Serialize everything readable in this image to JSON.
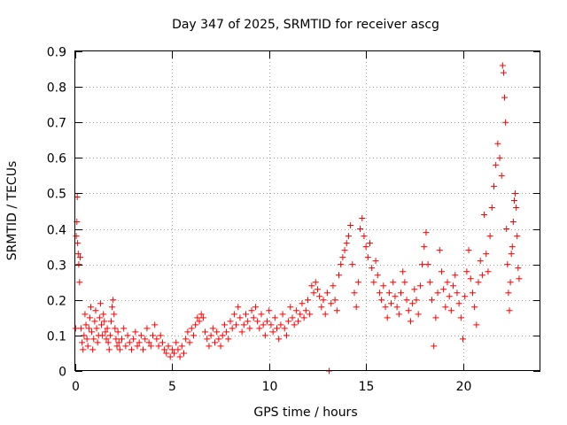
{
  "chart_data": {
    "type": "scatter",
    "title": "Day 347 of 2025, SRMTID for receiver ascg",
    "xlabel": "GPS time / hours",
    "ylabel": "SRMTID / TECUs",
    "xlim": [
      0,
      24
    ],
    "ylim": [
      0,
      0.9
    ],
    "x_ticks": [
      0,
      5,
      10,
      15,
      20
    ],
    "x_tick_labels": [
      "0",
      "5",
      "10",
      "15",
      "20"
    ],
    "y_ticks": [
      0,
      0.1,
      0.2,
      0.3,
      0.4,
      0.5,
      0.6,
      0.7,
      0.8,
      0.9
    ],
    "y_tick_labels": [
      "0",
      "0.1",
      "0.2",
      "0.3",
      "0.4",
      "0.5",
      "0.6",
      "0.7",
      "0.8",
      "0.9"
    ],
    "grid": true,
    "marker": "plus",
    "color": "#ff0000",
    "series": [
      {
        "name": "SRMTID",
        "points": [
          [
            0.02,
            0.12
          ],
          [
            0.05,
            0.38
          ],
          [
            0.08,
            0.42
          ],
          [
            0.1,
            0.49
          ],
          [
            0.12,
            0.36
          ],
          [
            0.15,
            0.33
          ],
          [
            0.18,
            0.3
          ],
          [
            0.22,
            0.25
          ],
          [
            0.25,
            0.32
          ],
          [
            0.3,
            0.12
          ],
          [
            0.35,
            0.08
          ],
          [
            0.4,
            0.06
          ],
          [
            0.45,
            0.1
          ],
          [
            0.5,
            0.16
          ],
          [
            0.55,
            0.13
          ],
          [
            0.6,
            0.09
          ],
          [
            0.65,
            0.07
          ],
          [
            0.7,
            0.12
          ],
          [
            0.75,
            0.15
          ],
          [
            0.8,
            0.18
          ],
          [
            0.85,
            0.11
          ],
          [
            0.9,
            0.06
          ],
          [
            0.95,
            0.09
          ],
          [
            1.0,
            0.14
          ],
          [
            1.05,
            0.17
          ],
          [
            1.1,
            0.12
          ],
          [
            1.15,
            0.08
          ],
          [
            1.2,
            0.1
          ],
          [
            1.25,
            0.15
          ],
          [
            1.3,
            0.19
          ],
          [
            1.35,
            0.13
          ],
          [
            1.4,
            0.1
          ],
          [
            1.45,
            0.16
          ],
          [
            1.5,
            0.14
          ],
          [
            1.55,
            0.11
          ],
          [
            1.6,
            0.09
          ],
          [
            1.65,
            0.12
          ],
          [
            1.7,
            0.08
          ],
          [
            1.75,
            0.06
          ],
          [
            1.8,
            0.1
          ],
          [
            1.85,
            0.14
          ],
          [
            1.9,
            0.18
          ],
          [
            1.95,
            0.2
          ],
          [
            2.0,
            0.16
          ],
          [
            2.05,
            0.12
          ],
          [
            2.1,
            0.09
          ],
          [
            2.15,
            0.07
          ],
          [
            2.2,
            0.11
          ],
          [
            2.25,
            0.08
          ],
          [
            2.3,
            0.06
          ],
          [
            2.4,
            0.09
          ],
          [
            2.5,
            0.12
          ],
          [
            2.6,
            0.07
          ],
          [
            2.7,
            0.1
          ],
          [
            2.8,
            0.08
          ],
          [
            2.9,
            0.06
          ],
          [
            3.0,
            0.09
          ],
          [
            3.1,
            0.11
          ],
          [
            3.2,
            0.07
          ],
          [
            3.3,
            0.08
          ],
          [
            3.4,
            0.1
          ],
          [
            3.5,
            0.06
          ],
          [
            3.6,
            0.09
          ],
          [
            3.7,
            0.12
          ],
          [
            3.8,
            0.08
          ],
          [
            3.9,
            0.07
          ],
          [
            4.0,
            0.1
          ],
          [
            4.1,
            0.13
          ],
          [
            4.2,
            0.09
          ],
          [
            4.3,
            0.07
          ],
          [
            4.4,
            0.1
          ],
          [
            4.5,
            0.08
          ],
          [
            4.6,
            0.06
          ],
          [
            4.7,
            0.05
          ],
          [
            4.8,
            0.07
          ],
          [
            4.9,
            0.04
          ],
          [
            5.0,
            0.06
          ],
          [
            5.1,
            0.05
          ],
          [
            5.2,
            0.08
          ],
          [
            5.3,
            0.06
          ],
          [
            5.4,
            0.04
          ],
          [
            5.5,
            0.07
          ],
          [
            5.6,
            0.05
          ],
          [
            5.7,
            0.09
          ],
          [
            5.8,
            0.11
          ],
          [
            5.9,
            0.08
          ],
          [
            6.0,
            0.12
          ],
          [
            6.1,
            0.1
          ],
          [
            6.2,
            0.13
          ],
          [
            6.3,
            0.15
          ],
          [
            6.4,
            0.14
          ],
          [
            6.5,
            0.16
          ],
          [
            6.6,
            0.15
          ],
          [
            6.7,
            0.11
          ],
          [
            6.8,
            0.09
          ],
          [
            6.9,
            0.07
          ],
          [
            7.0,
            0.1
          ],
          [
            7.1,
            0.12
          ],
          [
            7.2,
            0.08
          ],
          [
            7.3,
            0.11
          ],
          [
            7.4,
            0.09
          ],
          [
            7.5,
            0.07
          ],
          [
            7.6,
            0.1
          ],
          [
            7.7,
            0.13
          ],
          [
            7.8,
            0.11
          ],
          [
            7.9,
            0.09
          ],
          [
            8.0,
            0.14
          ],
          [
            8.1,
            0.12
          ],
          [
            8.2,
            0.16
          ],
          [
            8.3,
            0.13
          ],
          [
            8.4,
            0.18
          ],
          [
            8.5,
            0.15
          ],
          [
            8.6,
            0.11
          ],
          [
            8.7,
            0.13
          ],
          [
            8.8,
            0.16
          ],
          [
            8.9,
            0.14
          ],
          [
            9.0,
            0.12
          ],
          [
            9.1,
            0.17
          ],
          [
            9.2,
            0.15
          ],
          [
            9.3,
            0.18
          ],
          [
            9.4,
            0.14
          ],
          [
            9.5,
            0.12
          ],
          [
            9.6,
            0.16
          ],
          [
            9.7,
            0.13
          ],
          [
            9.8,
            0.1
          ],
          [
            9.9,
            0.14
          ],
          [
            10.0,
            0.17
          ],
          [
            10.1,
            0.13
          ],
          [
            10.2,
            0.11
          ],
          [
            10.3,
            0.15
          ],
          [
            10.4,
            0.12
          ],
          [
            10.5,
            0.09
          ],
          [
            10.6,
            0.13
          ],
          [
            10.7,
            0.16
          ],
          [
            10.8,
            0.12
          ],
          [
            10.9,
            0.1
          ],
          [
            11.0,
            0.14
          ],
          [
            11.1,
            0.18
          ],
          [
            11.2,
            0.15
          ],
          [
            11.3,
            0.13
          ],
          [
            11.4,
            0.17
          ],
          [
            11.5,
            0.14
          ],
          [
            11.6,
            0.16
          ],
          [
            11.7,
            0.19
          ],
          [
            11.8,
            0.15
          ],
          [
            11.9,
            0.17
          ],
          [
            12.0,
            0.2
          ],
          [
            12.1,
            0.16
          ],
          [
            12.2,
            0.24
          ],
          [
            12.3,
            0.22
          ],
          [
            12.4,
            0.25
          ],
          [
            12.5,
            0.23
          ],
          [
            12.6,
            0.21
          ],
          [
            12.7,
            0.18
          ],
          [
            12.8,
            0.2
          ],
          [
            12.9,
            0.16
          ],
          [
            13.0,
            0.22
          ],
          [
            13.1,
            0.0
          ],
          [
            13.2,
            0.19
          ],
          [
            13.3,
            0.24
          ],
          [
            13.4,
            0.2
          ],
          [
            13.5,
            0.17
          ],
          [
            13.6,
            0.27
          ],
          [
            13.7,
            0.3
          ],
          [
            13.8,
            0.32
          ],
          [
            13.9,
            0.34
          ],
          [
            14.0,
            0.36
          ],
          [
            14.1,
            0.38
          ],
          [
            14.2,
            0.41
          ],
          [
            14.3,
            0.3
          ],
          [
            14.4,
            0.22
          ],
          [
            14.5,
            0.18
          ],
          [
            14.6,
            0.25
          ],
          [
            14.7,
            0.4
          ],
          [
            14.8,
            0.43
          ],
          [
            14.9,
            0.38
          ],
          [
            15.0,
            0.35
          ],
          [
            15.1,
            0.32
          ],
          [
            15.2,
            0.36
          ],
          [
            15.3,
            0.29
          ],
          [
            15.4,
            0.25
          ],
          [
            15.5,
            0.31
          ],
          [
            15.6,
            0.27
          ],
          [
            15.7,
            0.22
          ],
          [
            15.8,
            0.2
          ],
          [
            15.9,
            0.24
          ],
          [
            16.0,
            0.18
          ],
          [
            16.1,
            0.15
          ],
          [
            16.2,
            0.22
          ],
          [
            16.3,
            0.19
          ],
          [
            16.4,
            0.25
          ],
          [
            16.5,
            0.21
          ],
          [
            16.6,
            0.18
          ],
          [
            16.7,
            0.16
          ],
          [
            16.8,
            0.22
          ],
          [
            16.9,
            0.28
          ],
          [
            17.0,
            0.25
          ],
          [
            17.1,
            0.2
          ],
          [
            17.2,
            0.17
          ],
          [
            17.3,
            0.14
          ],
          [
            17.4,
            0.19
          ],
          [
            17.5,
            0.23
          ],
          [
            17.6,
            0.2
          ],
          [
            17.7,
            0.16
          ],
          [
            17.8,
            0.24
          ],
          [
            17.9,
            0.3
          ],
          [
            18.0,
            0.35
          ],
          [
            18.1,
            0.39
          ],
          [
            18.2,
            0.3
          ],
          [
            18.3,
            0.25
          ],
          [
            18.4,
            0.2
          ],
          [
            18.5,
            0.07
          ],
          [
            18.6,
            0.15
          ],
          [
            18.7,
            0.22
          ],
          [
            18.8,
            0.34
          ],
          [
            18.9,
            0.28
          ],
          [
            19.0,
            0.23
          ],
          [
            19.1,
            0.18
          ],
          [
            19.2,
            0.25
          ],
          [
            19.3,
            0.21
          ],
          [
            19.4,
            0.17
          ],
          [
            19.5,
            0.24
          ],
          [
            19.6,
            0.27
          ],
          [
            19.7,
            0.22
          ],
          [
            19.8,
            0.19
          ],
          [
            19.9,
            0.15
          ],
          [
            20.0,
            0.09
          ],
          [
            20.1,
            0.21
          ],
          [
            20.2,
            0.28
          ],
          [
            20.3,
            0.34
          ],
          [
            20.4,
            0.26
          ],
          [
            20.5,
            0.22
          ],
          [
            20.6,
            0.18
          ],
          [
            20.7,
            0.13
          ],
          [
            20.8,
            0.25
          ],
          [
            20.9,
            0.31
          ],
          [
            21.0,
            0.27
          ],
          [
            21.1,
            0.44
          ],
          [
            21.2,
            0.33
          ],
          [
            21.3,
            0.28
          ],
          [
            21.4,
            0.38
          ],
          [
            21.5,
            0.46
          ],
          [
            21.6,
            0.52
          ],
          [
            21.7,
            0.58
          ],
          [
            21.8,
            0.64
          ],
          [
            21.9,
            0.6
          ],
          [
            22.0,
            0.55
          ],
          [
            22.05,
            0.86
          ],
          [
            22.1,
            0.84
          ],
          [
            22.15,
            0.77
          ],
          [
            22.2,
            0.7
          ],
          [
            22.25,
            0.4
          ],
          [
            22.3,
            0.3
          ],
          [
            22.35,
            0.22
          ],
          [
            22.4,
            0.17
          ],
          [
            22.45,
            0.25
          ],
          [
            22.5,
            0.33
          ],
          [
            22.55,
            0.35
          ],
          [
            22.6,
            0.42
          ],
          [
            22.65,
            0.48
          ],
          [
            22.7,
            0.5
          ],
          [
            22.75,
            0.46
          ],
          [
            22.8,
            0.38
          ],
          [
            22.85,
            0.29
          ],
          [
            22.9,
            0.26
          ]
        ]
      }
    ]
  }
}
